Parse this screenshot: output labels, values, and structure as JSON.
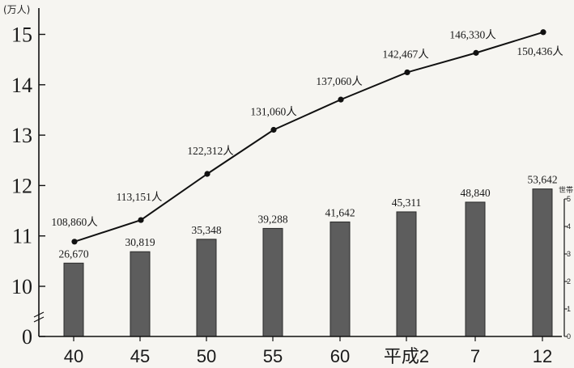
{
  "chart_data": {
    "type": "bar+line",
    "title": "",
    "categories": [
      "40",
      "45",
      "50",
      "55",
      "60",
      "平成2",
      "7",
      "12"
    ],
    "left_axis": {
      "unit_label": "(万人)",
      "ylim": [
        0,
        15
      ],
      "ticks": [
        {
          "value": 0,
          "label": "0"
        },
        {
          "value": 10,
          "label": "10"
        },
        {
          "value": 11,
          "label": "11"
        },
        {
          "value": 12,
          "label": "12"
        },
        {
          "value": 13,
          "label": "13"
        },
        {
          "value": 14,
          "label": "14"
        },
        {
          "value": 15,
          "label": "15"
        }
      ]
    },
    "right_axis": {
      "unit_label": "世帯",
      "ylim": [
        0,
        5
      ],
      "ticks": [
        "0",
        "1",
        "2",
        "3",
        "4",
        "5"
      ]
    },
    "line_series": {
      "name": "",
      "values": [
        108860,
        113151,
        122312,
        131060,
        137060,
        142467,
        146330,
        150436
      ],
      "labels": [
        "108,860人",
        "113,151人",
        "122,312人",
        "131,060人",
        "137,060人",
        "142,467人",
        "146,330人",
        "150,436人"
      ]
    },
    "bar_series": {
      "name": "",
      "values": [
        26670,
        30819,
        35348,
        39288,
        41642,
        45311,
        48840,
        53642
      ],
      "labels": [
        "26,670",
        "30,819",
        "35,348",
        "39,288",
        "41,642",
        "45,311",
        "48,840",
        "53,642"
      ]
    },
    "grid": false,
    "colors": {
      "bar": "#5d5d5d",
      "bar_edge": "#2a2a2a",
      "line": "#111111",
      "axis": "#111111"
    }
  }
}
